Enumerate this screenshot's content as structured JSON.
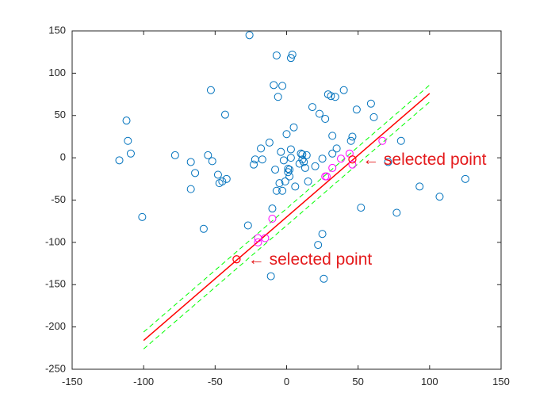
{
  "chart_data": {
    "type": "scatter",
    "title": "",
    "xlabel": "",
    "ylabel": "",
    "xlim": [
      -150,
      150
    ],
    "ylim": [
      -250,
      150
    ],
    "x_ticks": [
      -150,
      -100,
      -50,
      0,
      50,
      100,
      150
    ],
    "y_ticks": [
      -250,
      -200,
      -150,
      -100,
      -50,
      0,
      50,
      100,
      150
    ],
    "grid": false,
    "legend": "none",
    "colors": {
      "points": "#0072bd",
      "selected_points": "#ff00ff",
      "fit_line": "#ff0000",
      "bounds": "#00ff00",
      "annotation": "#ff0000"
    },
    "series": [
      {
        "marker": "circle",
        "color": "#0072bd",
        "points": [
          [
            -117,
            -3
          ],
          [
            -112,
            44
          ],
          [
            -111,
            20
          ],
          [
            -109,
            5
          ],
          [
            -101,
            -70
          ],
          [
            -78,
            3
          ],
          [
            -67,
            -5
          ],
          [
            -67,
            -37
          ],
          [
            -64,
            -18
          ],
          [
            -58,
            -84
          ],
          [
            -55,
            3
          ],
          [
            -53,
            80
          ],
          [
            -52,
            -4
          ],
          [
            -48,
            -20
          ],
          [
            -47,
            -30
          ],
          [
            -45,
            -28
          ],
          [
            -43,
            51
          ],
          [
            -42,
            -25
          ],
          [
            -27,
            -80
          ],
          [
            -26,
            145
          ],
          [
            -23,
            -8
          ],
          [
            -22,
            -2
          ],
          [
            -18,
            11
          ],
          [
            -17,
            -2
          ],
          [
            -12,
            18
          ],
          [
            -10,
            -60
          ],
          [
            -9,
            86
          ],
          [
            -8,
            -14
          ],
          [
            -7,
            121
          ],
          [
            -7,
            -39
          ],
          [
            -6,
            72
          ],
          [
            -5,
            -30
          ],
          [
            -4,
            7
          ],
          [
            -3,
            -39
          ],
          [
            -3,
            85
          ],
          [
            -2,
            -3
          ],
          [
            -1,
            -28
          ],
          [
            0,
            28
          ],
          [
            1,
            -17
          ],
          [
            1,
            -13
          ],
          [
            2,
            -14
          ],
          [
            2,
            -22
          ],
          [
            3,
            0
          ],
          [
            3,
            10
          ],
          [
            3,
            118
          ],
          [
            4,
            122
          ],
          [
            5,
            36
          ],
          [
            6,
            -34
          ],
          [
            9,
            -7
          ],
          [
            10,
            5
          ],
          [
            11,
            -2
          ],
          [
            11,
            4
          ],
          [
            12,
            -5
          ],
          [
            13,
            -12
          ],
          [
            14,
            3
          ],
          [
            15,
            -28
          ],
          [
            18,
            60
          ],
          [
            20,
            -10
          ],
          [
            22,
            -103
          ],
          [
            23,
            52
          ],
          [
            25,
            -1
          ],
          [
            25,
            -90
          ],
          [
            26,
            -143
          ],
          [
            27,
            46
          ],
          [
            29,
            75
          ],
          [
            31,
            73
          ],
          [
            32,
            5
          ],
          [
            32,
            26
          ],
          [
            34,
            72
          ],
          [
            35,
            11
          ],
          [
            40,
            80
          ],
          [
            45,
            20
          ],
          [
            46,
            25
          ],
          [
            49,
            57
          ],
          [
            52,
            -59
          ],
          [
            59,
            64
          ],
          [
            61,
            48
          ],
          [
            71,
            -5
          ],
          [
            77,
            -65
          ],
          [
            80,
            20
          ],
          [
            93,
            -34
          ],
          [
            107,
            -46
          ],
          [
            125,
            -25
          ],
          [
            -11,
            -140
          ]
        ]
      },
      {
        "marker": "circle",
        "color": "#ff00ff",
        "points": [
          [
            -35,
            -120
          ],
          [
            -20,
            -100
          ],
          [
            -20,
            -95
          ],
          [
            -15,
            -95
          ],
          [
            -10,
            -72
          ],
          [
            27,
            -22
          ],
          [
            28,
            -22
          ],
          [
            32,
            -12
          ],
          [
            38,
            -1
          ],
          [
            44,
            5
          ],
          [
            46,
            -8
          ],
          [
            67,
            20
          ]
        ]
      }
    ],
    "fit_line": {
      "color": "#ff0000",
      "from": [
        -100,
        -216
      ],
      "to": [
        100,
        76
      ]
    },
    "bounds": [
      {
        "color": "#00ff00",
        "style": "dashed",
        "from": [
          -100,
          -206
        ],
        "to": [
          100,
          86
        ]
      },
      {
        "color": "#00ff00",
        "style": "dashed",
        "from": [
          -100,
          -226
        ],
        "to": [
          100,
          66
        ]
      }
    ],
    "highlighted": [
      {
        "color": "#ff0000",
        "point": [
          -35,
          -120
        ]
      },
      {
        "color": "#ff0000",
        "point": [
          46,
          -2
        ]
      }
    ],
    "annotations": [
      {
        "text": "← selected point",
        "x": -27,
        "y": -121
      },
      {
        "text": "← selected point",
        "x": 53,
        "y": -3
      }
    ]
  }
}
